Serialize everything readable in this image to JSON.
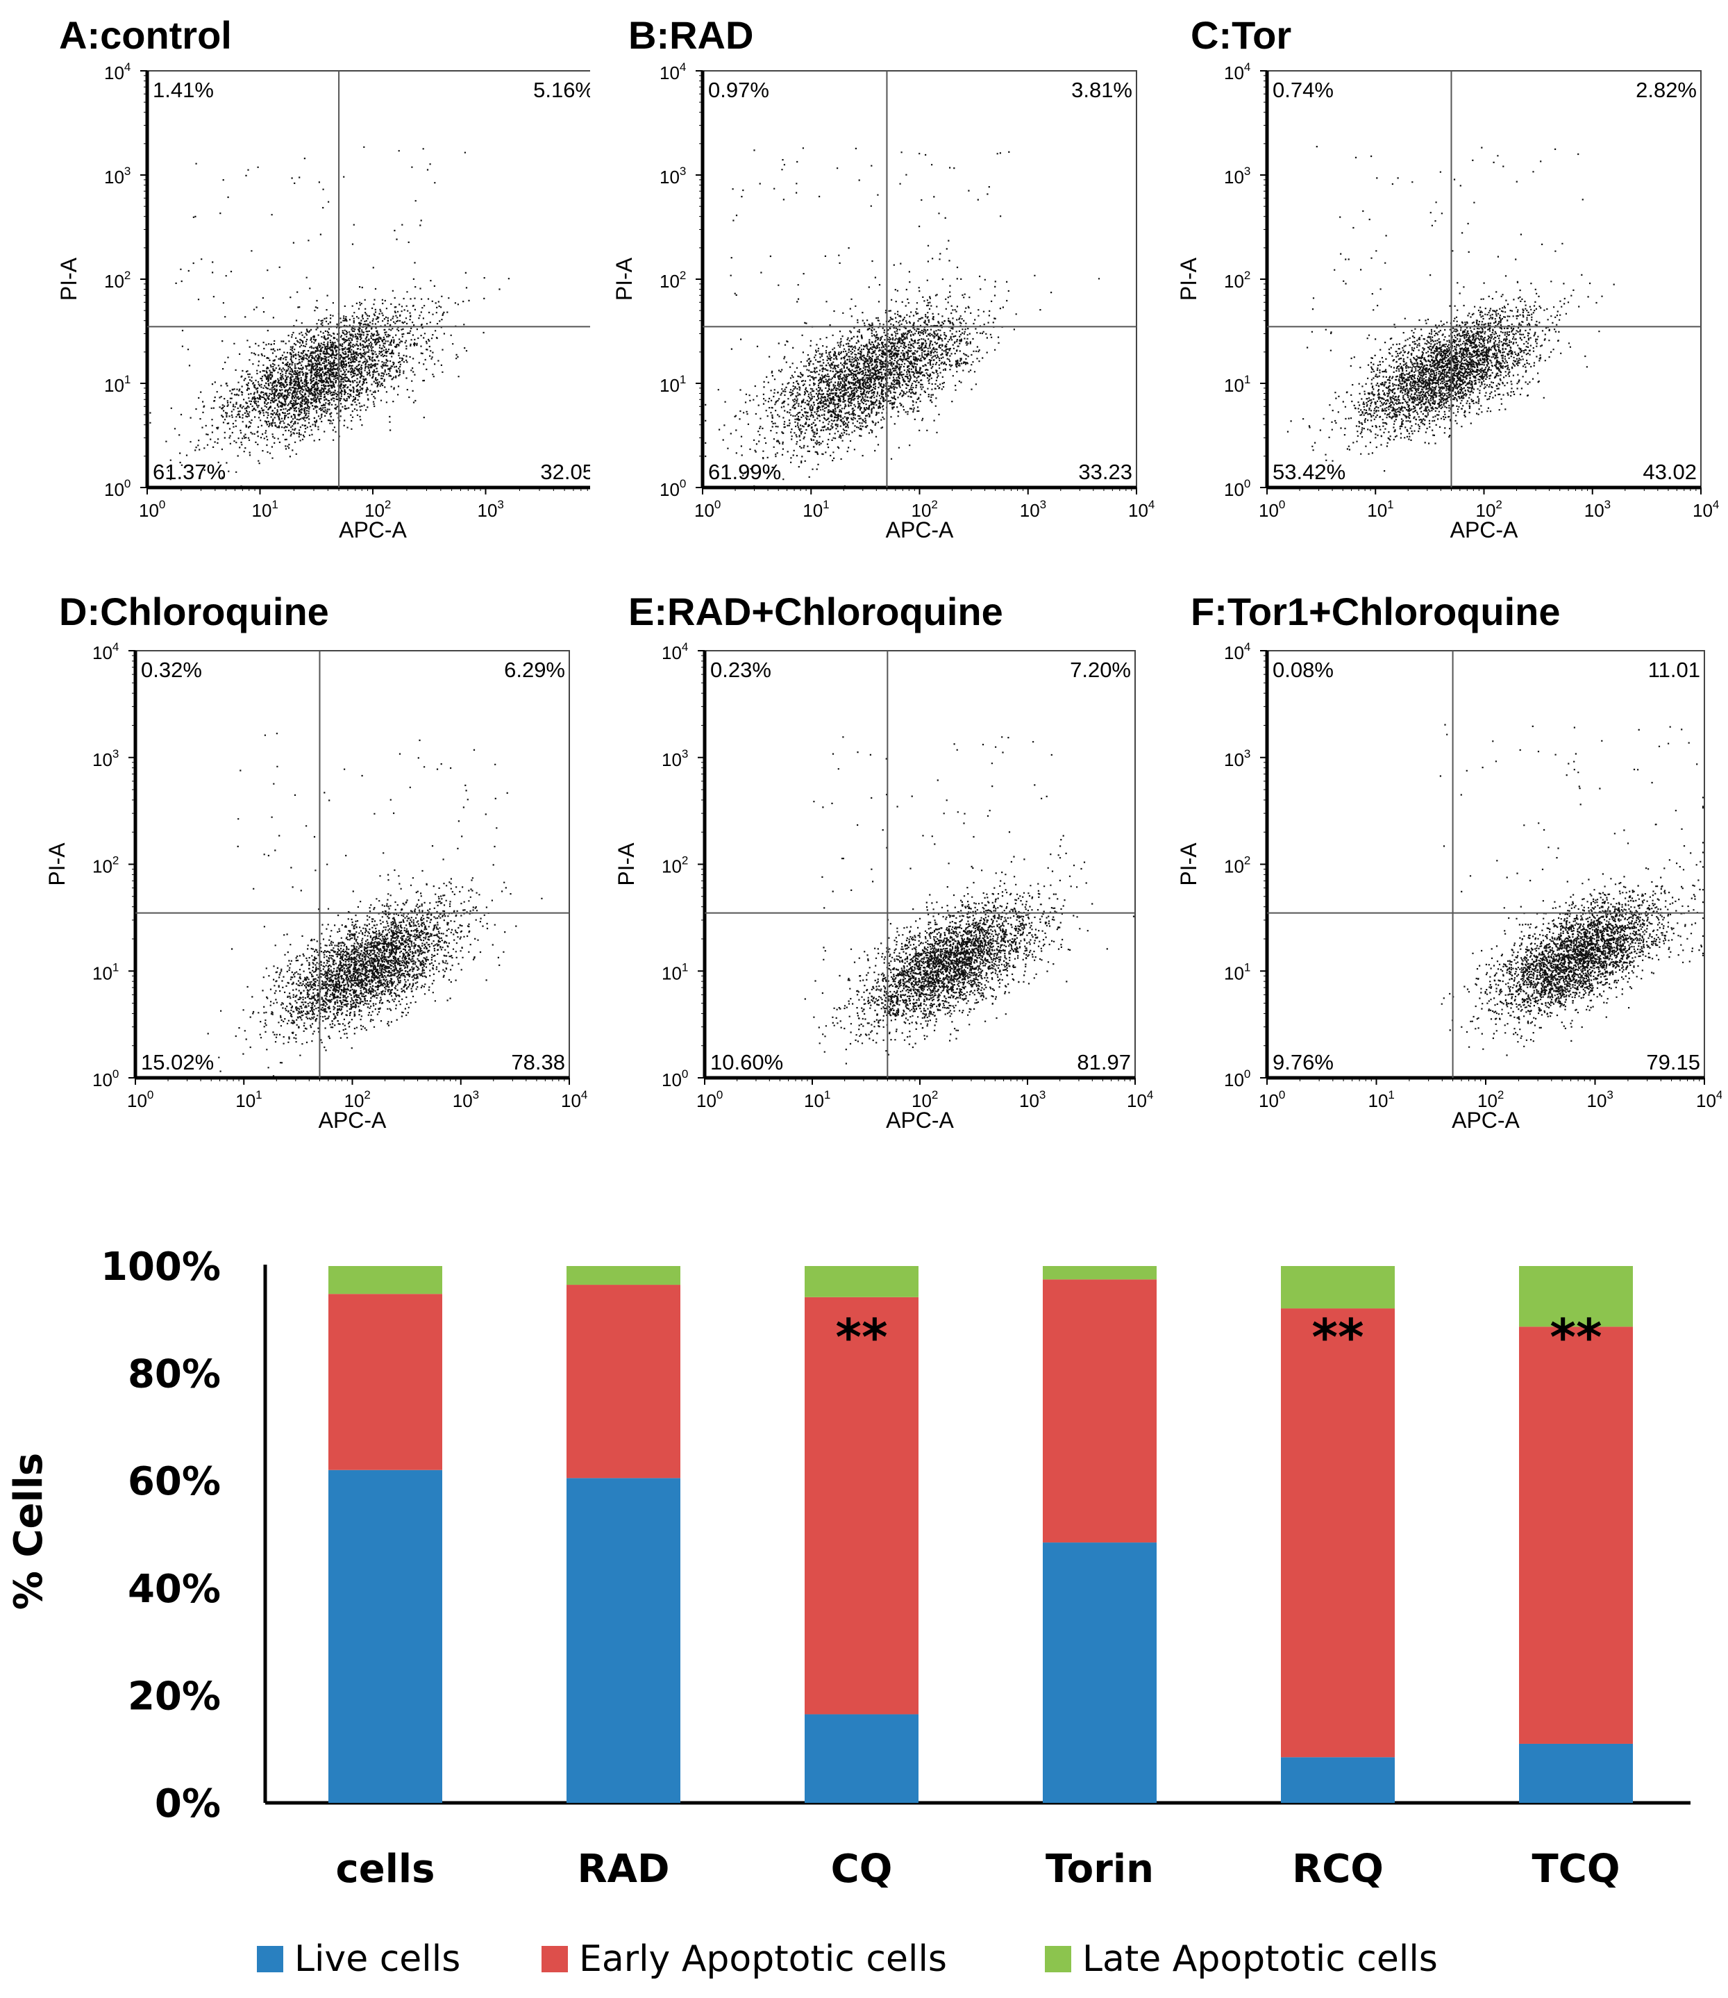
{
  "chart_data": [
    {
      "type": "scatter",
      "panel_title": "A:control",
      "xlabel": "APC-A",
      "ylabel": "PI-A",
      "xscale": "log",
      "yscale": "log",
      "xlim": [
        1,
        10000
      ],
      "ylim": [
        1,
        10000
      ],
      "ticks": [
        "0",
        "1",
        "2",
        "3",
        "4"
      ],
      "gate": {
        "x": 50,
        "y": 35
      },
      "cluster": {
        "center_x": 35,
        "center_y": 12,
        "spread": 0.38,
        "n": 3200
      },
      "quadrants": {
        "upper_left": "1.41%",
        "upper_right": "5.16%",
        "lower_left": "61.37%",
        "lower_right": "32.05"
      }
    },
    {
      "type": "scatter",
      "panel_title": "B:RAD",
      "xlabel": "APC-A",
      "ylabel": "PI-A",
      "xscale": "log",
      "yscale": "log",
      "xlim": [
        1,
        10000
      ],
      "ylim": [
        1,
        10000
      ],
      "ticks": [
        "0",
        "1",
        "2",
        "3",
        "4"
      ],
      "gate": {
        "x": 50,
        "y": 35
      },
      "cluster": {
        "center_x": 35,
        "center_y": 12,
        "spread": 0.4,
        "n": 3200
      },
      "quadrants": {
        "upper_left": "0.97%",
        "upper_right": "3.81%",
        "lower_left": "61.99%",
        "lower_right": "33.23"
      }
    },
    {
      "type": "scatter",
      "panel_title": "C:Tor",
      "xlabel": "APC-A",
      "ylabel": "PI-A",
      "xscale": "log",
      "yscale": "log",
      "xlim": [
        1,
        10000
      ],
      "ylim": [
        1,
        10000
      ],
      "ticks": [
        "0",
        "1",
        "2",
        "3",
        "4"
      ],
      "gate": {
        "x": 50,
        "y": 35
      },
      "cluster": {
        "center_x": 45,
        "center_y": 13,
        "spread": 0.36,
        "n": 3200
      },
      "quadrants": {
        "upper_left": "0.74%",
        "upper_right": "2.82%",
        "lower_left": "53.42%",
        "lower_right": "43.02"
      }
    },
    {
      "type": "scatter",
      "panel_title": "D:Chloroquine",
      "xlabel": "APC-A",
      "ylabel": "PI-A",
      "xscale": "log",
      "yscale": "log",
      "xlim": [
        1,
        10000
      ],
      "ylim": [
        1,
        10000
      ],
      "ticks": [
        "0",
        "1",
        "2",
        "3",
        "4"
      ],
      "gate": {
        "x": 50,
        "y": 35
      },
      "cluster": {
        "center_x": 140,
        "center_y": 11,
        "spread": 0.36,
        "n": 3200
      },
      "quadrants": {
        "upper_left": "0.32%",
        "upper_right": "6.29%",
        "lower_left": "15.02%",
        "lower_right": "78.38"
      }
    },
    {
      "type": "scatter",
      "panel_title": "E:RAD+Chloroquine",
      "xlabel": "APC-A",
      "ylabel": "PI-A",
      "xscale": "log",
      "yscale": "log",
      "xlim": [
        1,
        10000
      ],
      "ylim": [
        1,
        10000
      ],
      "ticks": [
        "0",
        "1",
        "2",
        "3",
        "4"
      ],
      "gate": {
        "x": 50,
        "y": 35
      },
      "cluster": {
        "center_x": 190,
        "center_y": 12,
        "spread": 0.36,
        "n": 3200
      },
      "quadrants": {
        "upper_left": "0.23%",
        "upper_right": "7.20%",
        "lower_left": "10.60%",
        "lower_right": "81.97"
      }
    },
    {
      "type": "scatter",
      "panel_title": "F:Tor1+Chloroquine",
      "xlabel": "APC-A",
      "ylabel": "PI-A",
      "xscale": "log",
      "yscale": "log",
      "xlim": [
        1,
        10000
      ],
      "ylim": [
        1,
        10000
      ],
      "ticks": [
        "0",
        "1",
        "2",
        "3",
        "4"
      ],
      "gate": {
        "x": 50,
        "y": 35
      },
      "cluster": {
        "center_x": 700,
        "center_y": 14,
        "spread": 0.34,
        "n": 3200
      },
      "quadrants": {
        "upper_left": "0.08%",
        "upper_right": "11.01",
        "lower_left": "9.76%",
        "lower_right": "79.15"
      }
    },
    {
      "type": "bar",
      "stacked": true,
      "categories": [
        "cells",
        "RAD",
        "CQ",
        "Torin",
        "RCQ",
        "TCQ"
      ],
      "series": [
        {
          "name": "Live cells",
          "color": "#2980c0",
          "values": [
            62,
            60.5,
            16.5,
            48.5,
            8.5,
            11
          ]
        },
        {
          "name": "Early Apoptotic cells",
          "color": "#dd4f4b",
          "values": [
            32.8,
            36,
            77.7,
            49,
            83.6,
            77.7
          ]
        },
        {
          "name": "Late Apoptotic cells",
          "color": "#8cc44e",
          "values": [
            5.2,
            3.5,
            5.8,
            2.5,
            7.9,
            11.3
          ]
        }
      ],
      "annotations": [
        "",
        "",
        "**",
        "",
        "**",
        "**"
      ],
      "ylabel": "% Cells",
      "yticks": [
        "0%",
        "20%",
        "40%",
        "60%",
        "80%",
        "100%"
      ],
      "ylim": [
        0,
        100
      ]
    }
  ]
}
